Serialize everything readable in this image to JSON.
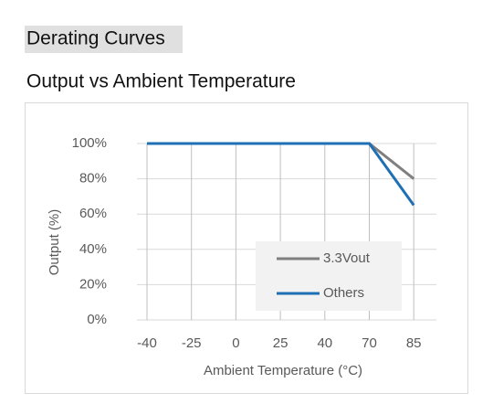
{
  "heading": "Derating Curves",
  "chart_data": {
    "type": "line",
    "title": "Output vs Ambient Temperature",
    "x_label": "Ambient Temperature (°C)",
    "y_label": "Output (%)",
    "categories": [
      "-40",
      "-25",
      "0",
      "25",
      "40",
      "70",
      "85"
    ],
    "series": [
      {
        "name": "3.3Vout",
        "color": "#7f7f7f",
        "values": [
          100,
          100,
          100,
          100,
          100,
          100,
          80
        ]
      },
      {
        "name": "Others",
        "color": "#1f6fb4",
        "values": [
          100,
          100,
          100,
          100,
          100,
          100,
          65
        ]
      }
    ],
    "ylim": [
      0,
      100
    ],
    "yticks": [
      {
        "value": 0,
        "label": "0%"
      },
      {
        "value": 20,
        "label": "20%"
      },
      {
        "value": 40,
        "label": "40%"
      },
      {
        "value": 60,
        "label": "60%"
      },
      {
        "value": 80,
        "label": "80%"
      },
      {
        "value": 100,
        "label": "100%"
      }
    ],
    "grid": true
  }
}
